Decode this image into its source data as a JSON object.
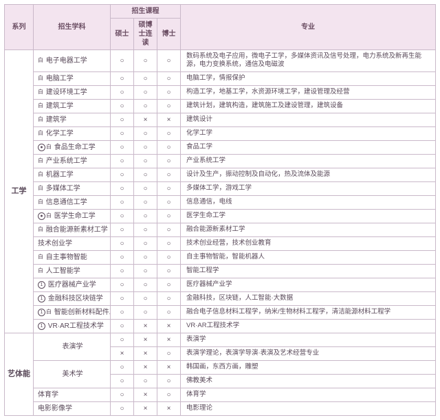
{
  "headers": {
    "series": "系列",
    "subject": "招生学科",
    "courses": "招生课程",
    "master": "硕士",
    "combined": "硕博士连读",
    "doctor": "博士",
    "major": "专业"
  },
  "mark_yes": "○",
  "mark_no": "×",
  "groups": [
    {
      "name": "工学",
      "rows": [
        {
          "subject": "电子电器工学",
          "badge": "白",
          "m": "○",
          "c": "○",
          "d": "○",
          "major": "数码系统及电子应用，微电子工学，多媒体资讯及信号处理，电力系统及新再生能源，电力变换系统，通信及电磁波",
          "multi": true
        },
        {
          "subject": "电脑工学",
          "badge": "白",
          "m": "○",
          "c": "○",
          "d": "○",
          "major": "电脑工学，情报保护"
        },
        {
          "subject": "建设环境工学",
          "badge": "白",
          "m": "○",
          "c": "○",
          "d": "○",
          "major": "构造工学，地基工学，水资源环境工学，建设管理及经营"
        },
        {
          "subject": "建筑工学",
          "badge": "白",
          "m": "○",
          "c": "○",
          "d": "○",
          "major": "建筑计划，建筑构造，建筑施工及建设管理，建筑设备"
        },
        {
          "subject": "建筑学",
          "badge": "白",
          "m": "○",
          "c": "×",
          "d": "×",
          "major": "建筑设计"
        },
        {
          "subject": "化学工学",
          "badge": "白",
          "m": "○",
          "c": "○",
          "d": "○",
          "major": "化学工学"
        },
        {
          "subject": "食品生命工学",
          "badge": "◎白",
          "m": "○",
          "c": "○",
          "d": "○",
          "major": "食品工学"
        },
        {
          "subject": "产业系统工学",
          "badge": "白",
          "m": "○",
          "c": "○",
          "d": "○",
          "major": "产业系统工学"
        },
        {
          "subject": "机器工学",
          "badge": "白",
          "m": "○",
          "c": "○",
          "d": "○",
          "major": "设计及生产，振动控制及自动化，热及流体及能源"
        },
        {
          "subject": "多媒体工学",
          "badge": "白",
          "m": "○",
          "c": "○",
          "d": "○",
          "major": "多媒体工学，游戏工学"
        },
        {
          "subject": "信息通信工学",
          "badge": "白",
          "m": "○",
          "c": "○",
          "d": "○",
          "major": "信息通信，电线"
        },
        {
          "subject": "医学生命工学",
          "badge": "◎白",
          "m": "○",
          "c": "○",
          "d": "○",
          "major": "医学生命工学"
        },
        {
          "subject": "融合能源新素材工学",
          "badge": "白",
          "m": "○",
          "c": "○",
          "d": "○",
          "major": "融合能源新素材工学"
        },
        {
          "subject": "技术创业学",
          "badge": "",
          "m": "○",
          "c": "○",
          "d": "○",
          "major": "技术创业经营，技术创业教育"
        },
        {
          "subject": "自主事物智能",
          "badge": "白",
          "m": "○",
          "c": "○",
          "d": "○",
          "major": "自主事物智能，智能机器人"
        },
        {
          "subject": "人工智能学",
          "badge": "白",
          "m": "○",
          "c": "○",
          "d": "○",
          "major": "智能工程学"
        },
        {
          "subject": "医疗器械产业学",
          "badge": "①",
          "m": "○",
          "c": "○",
          "d": "○",
          "major": "医疗器械产业学"
        },
        {
          "subject": "金融科技区块链学",
          "badge": "①",
          "m": "○",
          "c": "○",
          "d": "○",
          "major": "金融科技，区块链，人工智能·大数据"
        },
        {
          "subject": "智能创新材料配件工程学",
          "badge": "①白",
          "m": "○",
          "c": "○",
          "d": "○",
          "major": "融合电子信息材料工程学，纳米/生物材料工程学，清洁能源材料工程学"
        },
        {
          "subject": "VR·AR工程技术学",
          "badge": "①",
          "m": "○",
          "c": "×",
          "d": "×",
          "major": "VR·AR工程技术学"
        }
      ]
    },
    {
      "name": "艺体能",
      "rows": [
        {
          "subject": "表演学",
          "span": 2,
          "m": "○",
          "c": "×",
          "d": "×",
          "major": "表演学"
        },
        {
          "sub": true,
          "m": "×",
          "c": "×",
          "d": "○",
          "major": "表演学理论，表演学导演·表演及艺术经营专业"
        },
        {
          "subject": "美术学",
          "span": 2,
          "m": "○",
          "c": "×",
          "d": "×",
          "major": "韩国画，东西方画，雕塑"
        },
        {
          "sub": true,
          "m": "○",
          "c": "○",
          "d": "○",
          "major": "佛教美术"
        },
        {
          "subject": "体育学",
          "m": "○",
          "c": "×",
          "d": "○",
          "major": "体育学"
        },
        {
          "subject": "电影影像学",
          "m": "○",
          "c": "×",
          "d": "×",
          "major": "电影理论"
        }
      ]
    }
  ]
}
